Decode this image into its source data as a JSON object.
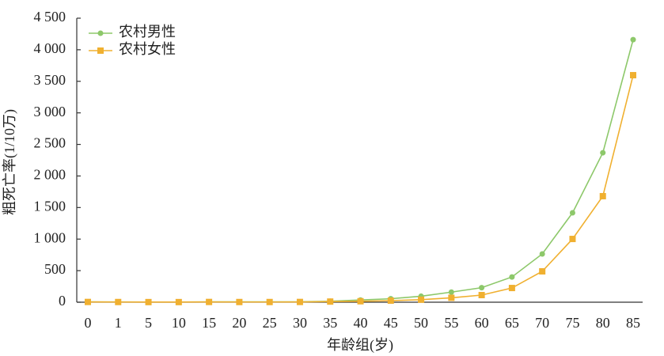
{
  "chart_data": {
    "type": "line",
    "x_label": "年龄组(岁)",
    "y_label": "粗死亡率(1/10万)",
    "categories": [
      "0",
      "1",
      "5",
      "10",
      "15",
      "20",
      "25",
      "30",
      "35",
      "40",
      "45",
      "50",
      "55",
      "60",
      "65",
      "70",
      "75",
      "80",
      "85"
    ],
    "series": [
      {
        "name": "农村男性",
        "color": "#8dc86a",
        "marker": "circle",
        "values": [
          5,
          4,
          3,
          3,
          5,
          5,
          5,
          6,
          15,
          35,
          55,
          95,
          160,
          230,
          400,
          765,
          1416,
          2368,
          4160
        ]
      },
      {
        "name": "农村女性",
        "color": "#f0b030",
        "marker": "square",
        "values": [
          4,
          3,
          2,
          2,
          4,
          3,
          3,
          4,
          10,
          15,
          25,
          40,
          70,
          113,
          225,
          489,
          1002,
          1680,
          3597
        ]
      }
    ],
    "ylim": [
      0,
      4500
    ],
    "yticks": [
      0,
      500,
      {
        "value": 1000,
        "label": "1 000"
      },
      {
        "value": 1500,
        "label": "1 500"
      },
      {
        "value": 2000,
        "label": "2 000"
      },
      {
        "value": 2500,
        "label": "2 500"
      },
      {
        "value": 3000,
        "label": "3 000"
      },
      {
        "value": 3500,
        "label": "3 500"
      },
      {
        "value": 4000,
        "label": "4 000"
      },
      {
        "value": 4500,
        "label": "4 500"
      }
    ],
    "legend": "top-left"
  }
}
